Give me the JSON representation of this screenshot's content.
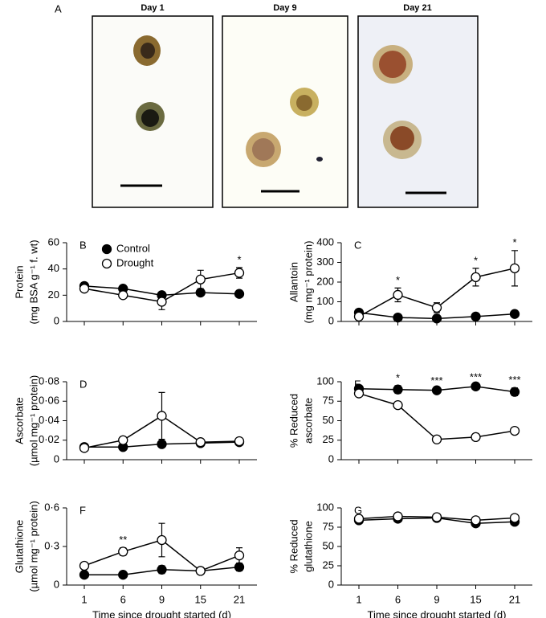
{
  "photos": {
    "label": "A",
    "titles": [
      "Day 1",
      "Day 9",
      "Day 21"
    ]
  },
  "chart_data": [
    {
      "type": "line",
      "label": "B",
      "ylabel": [
        "Protein",
        "(mg BSA g⁻¹ f. wt)"
      ],
      "categories": [
        null,
        null,
        null,
        null,
        null
      ],
      "ylim": [
        0,
        60
      ],
      "yticks": [
        0,
        20,
        40,
        60
      ],
      "legend": "upper left",
      "series": [
        {
          "name": "Control",
          "color": "#000000",
          "marker": "filled",
          "values": [
            27,
            25,
            20,
            22,
            21
          ],
          "errors": [
            2,
            2,
            2,
            2,
            1
          ]
        },
        {
          "name": "Drought",
          "color": "#000000",
          "marker": "open",
          "values": [
            25,
            20,
            15,
            32,
            37
          ],
          "errors": [
            2,
            2,
            6,
            7,
            4
          ]
        }
      ],
      "significance": [
        null,
        null,
        null,
        null,
        "*"
      ]
    },
    {
      "type": "line",
      "label": "C",
      "ylabel": [
        "Allantoin",
        "(mg mg⁻¹ protein)"
      ],
      "categories": [
        null,
        null,
        null,
        null,
        null
      ],
      "ylim": [
        0,
        400
      ],
      "yticks": [
        0,
        100,
        200,
        300,
        400
      ],
      "series": [
        {
          "color": "#000000",
          "marker": "filled",
          "values": [
            45,
            20,
            15,
            25,
            38
          ],
          "errors": [
            10,
            5,
            5,
            5,
            8
          ]
        },
        {
          "color": "#000000",
          "marker": "open",
          "values": [
            25,
            135,
            70,
            225,
            270
          ],
          "errors": [
            8,
            35,
            25,
            45,
            90
          ]
        }
      ],
      "significance": [
        null,
        "*",
        null,
        "*",
        "*"
      ]
    },
    {
      "type": "line",
      "label": "D",
      "ylabel": [
        "Ascorbate",
        "(µmol mg⁻¹ protein)"
      ],
      "categories": [
        null,
        null,
        null,
        null,
        null
      ],
      "ylim": [
        0,
        0.08
      ],
      "yticks": [
        0,
        {
          "value": 0.02,
          "label": "0·02"
        },
        {
          "value": 0.04,
          "label": "0·04"
        },
        {
          "value": 0.06,
          "label": "0·06"
        },
        {
          "value": 0.08,
          "label": "0·08"
        }
      ],
      "series": [
        {
          "color": "#000000",
          "marker": "filled",
          "values": [
            0.013,
            0.013,
            0.016,
            0.017,
            0.018
          ],
          "errors": [
            0.001,
            0.001,
            0.001,
            0.001,
            0.001
          ]
        },
        {
          "color": "#000000",
          "marker": "open",
          "values": [
            0.012,
            0.02,
            0.045,
            0.018,
            0.019
          ],
          "errors": [
            0.002,
            0.001,
            0.024,
            0.002,
            0.002
          ]
        }
      ],
      "significance": [
        null,
        null,
        null,
        null,
        null
      ]
    },
    {
      "type": "line",
      "label": "E",
      "ylabel": [
        "% Reduced",
        "ascorbate"
      ],
      "categories": [
        null,
        null,
        null,
        null,
        null
      ],
      "ylim": [
        0,
        100
      ],
      "yticks": [
        0,
        25,
        50,
        75,
        100
      ],
      "series": [
        {
          "color": "#000000",
          "marker": "filled",
          "values": [
            91,
            90,
            89,
            94,
            87
          ],
          "errors": [
            3,
            5,
            2,
            2,
            5
          ]
        },
        {
          "color": "#000000",
          "marker": "open",
          "values": [
            85,
            70,
            26,
            29,
            37
          ],
          "errors": [
            4,
            2,
            1,
            1,
            1
          ]
        }
      ],
      "significance": [
        null,
        "*",
        "***",
        "***",
        "***"
      ]
    },
    {
      "type": "line",
      "label": "F",
      "ylabel": [
        "Glutathione",
        "(µmol mg⁻¹ protein)"
      ],
      "categories": [
        "1",
        "6",
        "9",
        "15",
        "21"
      ],
      "xlabel": "Time since drought started (d)",
      "ylim": [
        0,
        0.6
      ],
      "yticks": [
        0,
        {
          "value": 0.3,
          "label": "0·3"
        },
        {
          "value": 0.6,
          "label": "0·6"
        }
      ],
      "series": [
        {
          "color": "#000000",
          "marker": "filled",
          "values": [
            0.08,
            0.08,
            0.12,
            0.11,
            0.14
          ],
          "errors": [
            0.01,
            0.01,
            0.03,
            0.01,
            0.03
          ]
        },
        {
          "color": "#000000",
          "marker": "open",
          "values": [
            0.15,
            0.26,
            0.35,
            0.11,
            0.23
          ],
          "errors": [
            0.02,
            0.03,
            0.13,
            0.01,
            0.06
          ]
        }
      ],
      "significance": [
        null,
        "**",
        null,
        null,
        null
      ]
    },
    {
      "type": "line",
      "label": "G",
      "ylabel": [
        "% Reduced",
        "glutathione"
      ],
      "categories": [
        "1",
        "6",
        "9",
        "15",
        "21"
      ],
      "xlabel": "Time since drought started (d)",
      "ylim": [
        0,
        100
      ],
      "yticks": [
        0,
        25,
        50,
        75,
        100
      ],
      "series": [
        {
          "color": "#000000",
          "marker": "filled",
          "values": [
            84,
            86,
            87,
            80,
            82
          ],
          "errors": [
            2,
            2,
            2,
            2,
            2
          ]
        },
        {
          "color": "#000000",
          "marker": "open",
          "values": [
            86,
            89,
            88,
            84,
            87
          ],
          "errors": [
            2,
            2,
            2,
            2,
            2
          ]
        }
      ],
      "significance": [
        null,
        null,
        null,
        null,
        null
      ]
    }
  ]
}
